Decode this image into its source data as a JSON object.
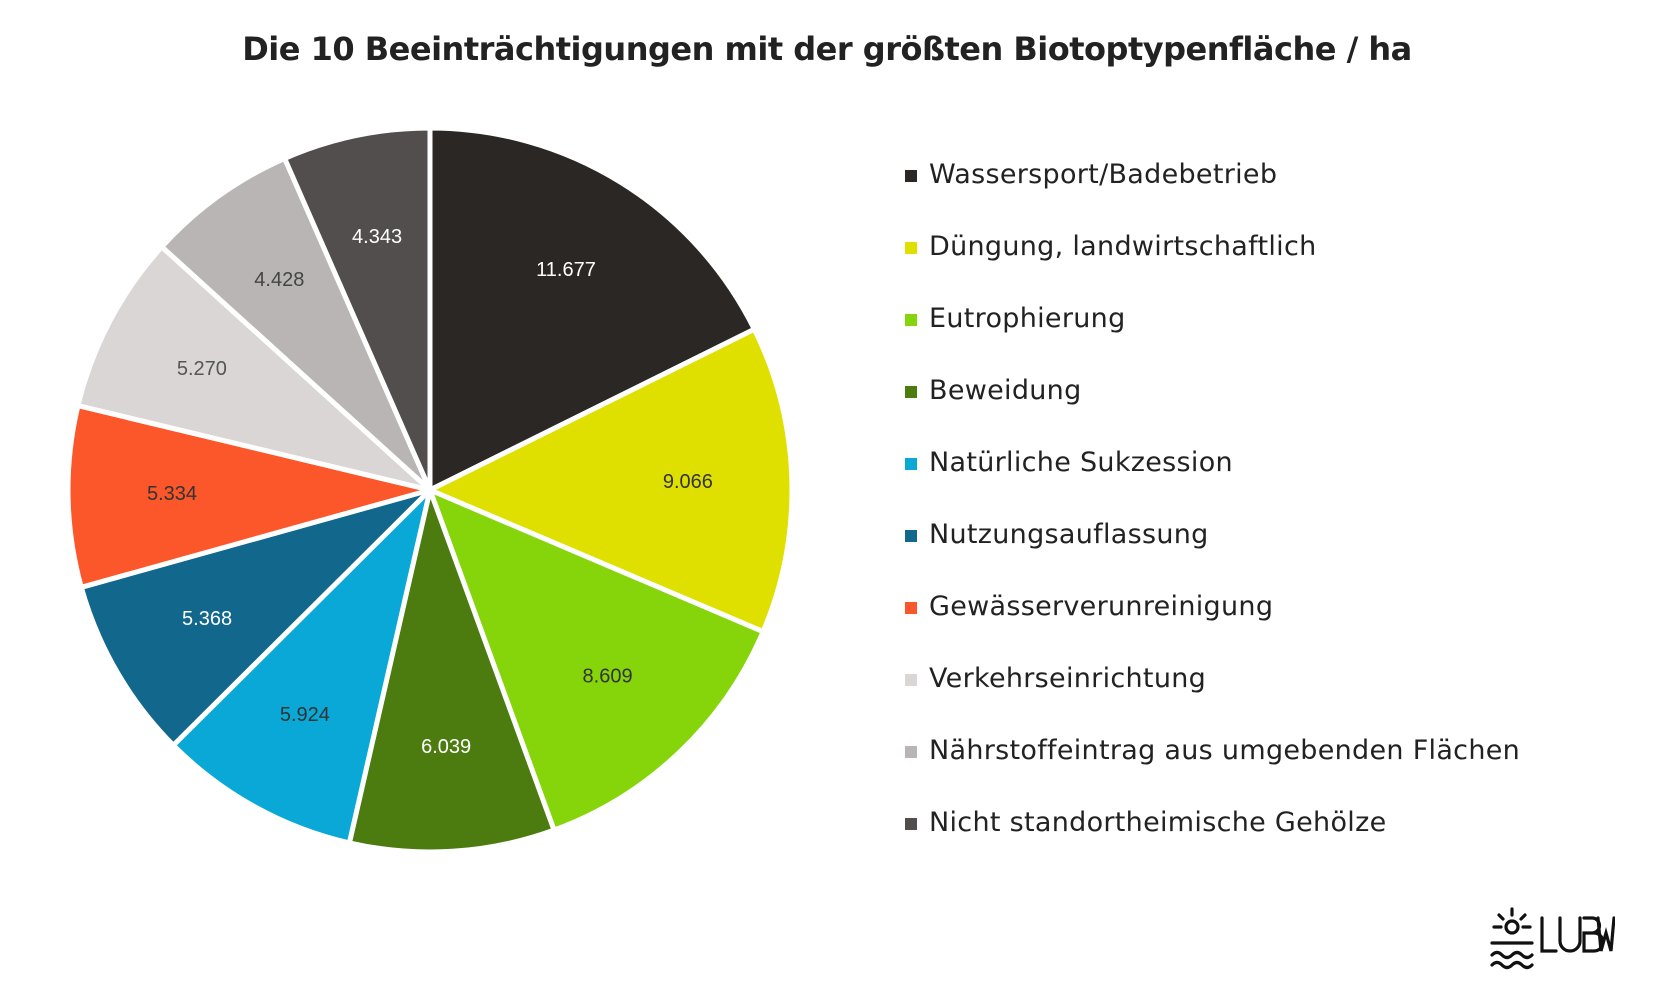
{
  "chart_data": {
    "type": "pie",
    "title": "Die 10 Beeinträchtigungen mit der größten Biotoptypenfläche / ha",
    "slices": [
      {
        "name": "Wassersport/Badebetrieb",
        "value": 11.677,
        "label": "11.677",
        "color": "#2b2724",
        "label_color": "#ffffff"
      },
      {
        "name": "Düngung, landwirtschaftlich",
        "value": 9.066,
        "label": "9.066",
        "color": "#dfe000",
        "label_color": "#333333"
      },
      {
        "name": "Eutrophierung",
        "value": 8.609,
        "label": "8.609",
        "color": "#86d50b",
        "label_color": "#333333"
      },
      {
        "name": "Beweidung",
        "value": 6.039,
        "label": "6.039",
        "color": "#4c7c10",
        "label_color": "#ffffff"
      },
      {
        "name": "Natürliche Sukzession",
        "value": 5.924,
        "label": "5.924",
        "color": "#09a8d6",
        "label_color": "#333333"
      },
      {
        "name": "Nutzungsauflassung",
        "value": 5.368,
        "label": "5.368",
        "color": "#12678c",
        "label_color": "#ffffff"
      },
      {
        "name": "Gewässerverunreinigung",
        "value": 5.334,
        "label": "5.334",
        "color": "#fb572a",
        "label_color": "#333333"
      },
      {
        "name": "Verkehrseinrichtung",
        "value": 5.27,
        "label": "5.270",
        "color": "#dad6d6",
        "label_color": "#555555"
      },
      {
        "name": "Nährstoffeintrag aus umgebenden Flächen",
        "value": 4.428,
        "label": "4.428",
        "color": "#bab5b5",
        "label_color": "#444444"
      },
      {
        "name": "Nicht standortheimische Gehölze",
        "value": 4.343,
        "label": "4.343",
        "color": "#524e4e",
        "label_color": "#ffffff"
      }
    ],
    "legend_position": "right"
  },
  "logo": {
    "text": "LUBW"
  }
}
